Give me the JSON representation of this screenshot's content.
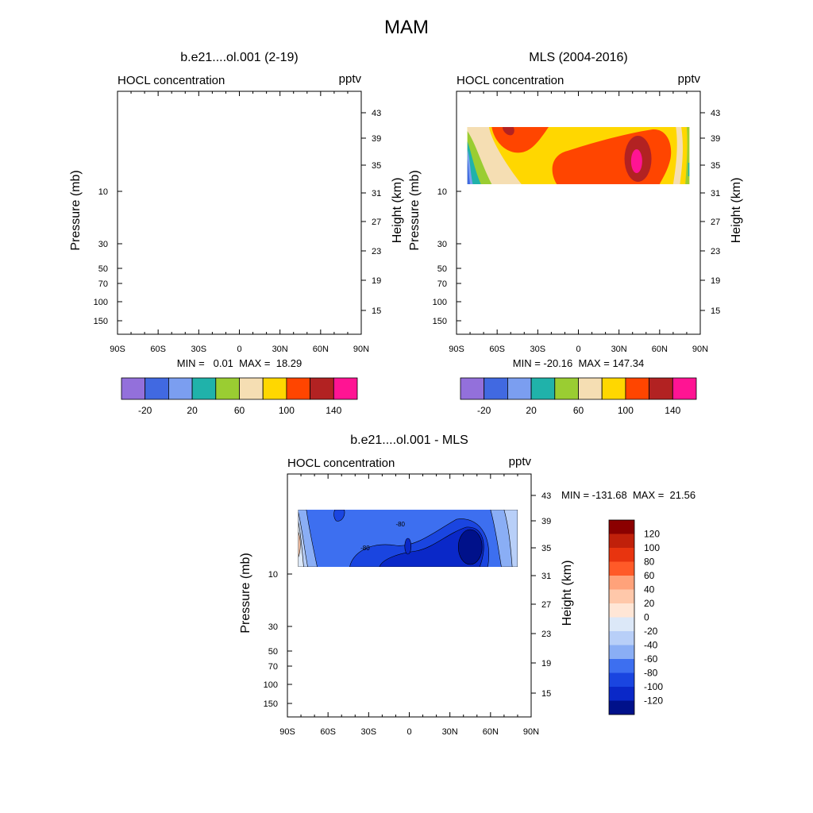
{
  "figure": {
    "title": "MAM"
  },
  "chart_data": [
    {
      "type": "heatmap",
      "title": "b.e21....ol.001 (2-19)",
      "left_label": "HOCL concentration",
      "right_label": "pptv",
      "ylabel_left": "Pressure (mb)",
      "ylabel_right": "Height (km)",
      "x_ticks": [
        "90S",
        "60S",
        "30S",
        "0",
        "30N",
        "60N",
        "90N"
      ],
      "xlim": [
        -90,
        90
      ],
      "pressure_ticks": [
        "10",
        "30",
        "50",
        "70",
        "100",
        "150"
      ],
      "height_ticks": [
        "43",
        "39",
        "35",
        "31",
        "27",
        "23",
        "19",
        "15"
      ],
      "stats": "MIN =   0.01  MAX =  18.29",
      "colorbar": {
        "labels": [
          "-20",
          "20",
          "60",
          "100",
          "140"
        ],
        "colors": [
          "#9370db",
          "#4169e1",
          "#7b9ef0",
          "#20b2aa",
          "#9acd32",
          "#f5deb3",
          "#ffd700",
          "#ff4500",
          "#b22222",
          "#ff1493"
        ]
      },
      "field": "empty"
    },
    {
      "type": "heatmap",
      "title": "MLS (2004-2016)",
      "left_label": "HOCL concentration",
      "right_label": "pptv",
      "ylabel_left": "Pressure (mb)",
      "ylabel_right": "Height (km)",
      "x_ticks": [
        "90S",
        "60S",
        "30S",
        "0",
        "30N",
        "60N",
        "90N"
      ],
      "xlim": [
        -90,
        90
      ],
      "pressure_ticks": [
        "10",
        "30",
        "50",
        "70",
        "100",
        "150"
      ],
      "height_ticks": [
        "43",
        "39",
        "35",
        "31",
        "27",
        "23",
        "19",
        "15"
      ],
      "stats": "MIN = -20.16  MAX = 147.34",
      "colorbar": {
        "labels": [
          "-20",
          "20",
          "60",
          "100",
          "140"
        ],
        "colors": [
          "#9370db",
          "#4169e1",
          "#7b9ef0",
          "#20b2aa",
          "#9acd32",
          "#f5deb3",
          "#ffd700",
          "#ff4500",
          "#b22222",
          "#ff1493"
        ]
      },
      "field": "mls"
    },
    {
      "type": "heatmap",
      "title": "b.e21....ol.001 - MLS",
      "left_label": "HOCL concentration",
      "right_label": "pptv",
      "ylabel_left": "Pressure (mb)",
      "ylabel_right": "Height (km)",
      "x_ticks": [
        "90S",
        "60S",
        "30S",
        "0",
        "30N",
        "60N",
        "90N"
      ],
      "xlim": [
        -90,
        90
      ],
      "pressure_ticks": [
        "10",
        "30",
        "50",
        "70",
        "100",
        "150"
      ],
      "height_ticks": [
        "43",
        "39",
        "35",
        "31",
        "27",
        "23",
        "19",
        "15"
      ],
      "stats": "MIN = -131.68  MAX =  21.56",
      "contour_labels": [
        "-80",
        "-80"
      ],
      "colorbar": {
        "labels": [
          "120",
          "100",
          "80",
          "60",
          "40",
          "20",
          "0",
          "-20",
          "-40",
          "-60",
          "-80",
          "-100",
          "-120"
        ],
        "colors": [
          "#8b0000",
          "#c0200a",
          "#e8340f",
          "#ff5a28",
          "#ffa27a",
          "#ffc8aa",
          "#ffe6d6",
          "#dce8f8",
          "#b8cff8",
          "#8aaef5",
          "#3d6ff0",
          "#1a45e0",
          "#0a28c8",
          "#00118a"
        ]
      },
      "field": "diff"
    }
  ]
}
